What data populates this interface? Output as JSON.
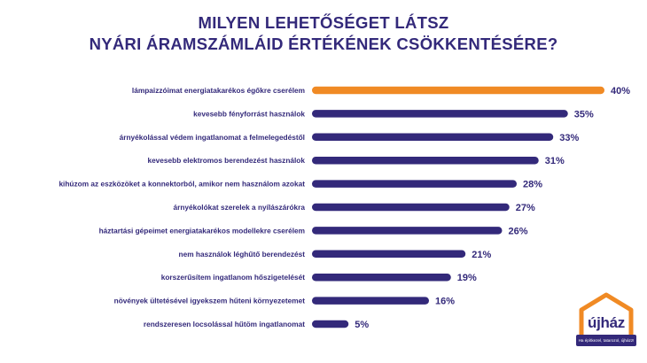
{
  "title": {
    "line1": "MILYEN LEHETŐSÉGET LÁTSZ",
    "line2": "NYÁRI ÁRAMSZÁMLÁID ÉRTÉKÉNEK CSÖKKENTÉSÉRE?"
  },
  "colors": {
    "highlight": "#f08a24",
    "bar": "#33297a",
    "text": "#33297a"
  },
  "chart_data": {
    "type": "bar",
    "orientation": "horizontal",
    "title": "MILYEN LEHETŐSÉGET LÁTSZ NYÁRI ÁRAMSZÁMLÁID ÉRTÉKÉNEK CSÖKKENTÉSÉRE?",
    "categories": [
      "lámpaizzóimat energiatakarékos égőkre cserélem",
      "kevesebb fényforrást használok",
      "árnyékolással védem ingatlanomat a felmelegedéstől",
      "kevesebb elektromos berendezést használok",
      "kihúzom az eszközöket a konnektorból, amikor nem használom azokat",
      "árnyékolókat szerelek a nyílászárókra",
      "háztartási gépeimet energiatakarékos modellekre cserélem",
      "nem használok léghűtő berendezést",
      "korszerűsítem ingatlanom hőszigetelését",
      "növények ültetésével igyekszem hűteni környezetemet",
      "rendszeresen locsolással hűtöm ingatlanomat"
    ],
    "values": [
      40,
      35,
      33,
      31,
      28,
      27,
      26,
      21,
      19,
      16,
      5
    ],
    "value_labels": [
      "40%",
      "35%",
      "33%",
      "31%",
      "28%",
      "27%",
      "26%",
      "21%",
      "19%",
      "16%",
      "5%"
    ],
    "unit": "%",
    "highlighted_index": 0,
    "grid": false,
    "legend": "none"
  },
  "logo": {
    "name": "újház",
    "tagline": "Ha építkezel, tatarozol, újházz!"
  }
}
